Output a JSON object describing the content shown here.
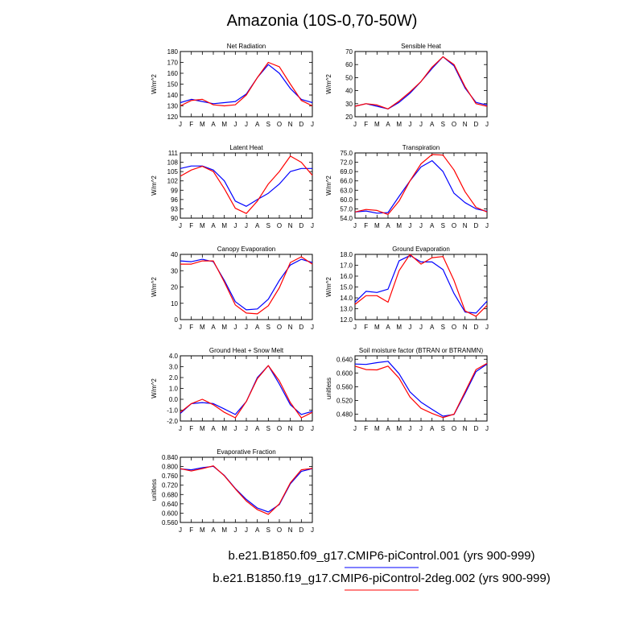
{
  "figure": {
    "title": "Amazonia (10S-0,70-50W)",
    "months": [
      "J",
      "F",
      "M",
      "A",
      "M",
      "J",
      "J",
      "A",
      "S",
      "O",
      "N",
      "D",
      "J"
    ],
    "colors": {
      "case1": "#0000ff",
      "case2": "#ff0000"
    },
    "legend": [
      {
        "label": "b.e21.B1850.f09_g17.CMIP6-piControl.001 (yrs 900-999)",
        "color": "#0000ff"
      },
      {
        "label": "b.e21.B1850.f19_g17.CMIP6-piControl-2deg.002 (yrs 900-999)",
        "color": "#ff0000"
      }
    ]
  },
  "chart_data": [
    {
      "type": "line",
      "title": "Net Radiation",
      "ylabel": "W/m^2",
      "ylim": [
        120,
        180
      ],
      "yticks": [
        "120",
        "130",
        "140",
        "150",
        "160",
        "170",
        "180"
      ],
      "x": [
        "J",
        "F",
        "M",
        "A",
        "M",
        "J",
        "J",
        "A",
        "S",
        "O",
        "N",
        "D",
        "J"
      ],
      "series": [
        {
          "name": "b.e21.B1850.f09_g17.CMIP6-piControl.001",
          "values": [
            133,
            136,
            134,
            132,
            133,
            134,
            141,
            156,
            168,
            160,
            146,
            136,
            133
          ]
        },
        {
          "name": "b.e21.B1850.f19_g17.CMIP6-piControl-2deg.002",
          "values": [
            130,
            135,
            136,
            131,
            130,
            131,
            140,
            156,
            170,
            166,
            150,
            135,
            130
          ]
        }
      ]
    },
    {
      "type": "line",
      "title": "Sensible Heat",
      "ylabel": "W/m^2",
      "ylim": [
        20,
        70
      ],
      "yticks": [
        "20",
        "30",
        "40",
        "50",
        "60",
        "70"
      ],
      "x": [
        "J",
        "F",
        "M",
        "A",
        "M",
        "J",
        "J",
        "A",
        "S",
        "O",
        "N",
        "D",
        "J"
      ],
      "series": [
        {
          "name": "b.e21.B1850.f09_g17.CMIP6-piControl.001",
          "values": [
            28,
            30,
            28,
            26,
            31,
            38,
            47,
            57,
            66,
            59,
            42,
            31,
            29
          ]
        },
        {
          "name": "b.e21.B1850.f19_g17.CMIP6-piControl-2deg.002",
          "values": [
            28,
            30,
            29,
            26,
            32,
            39,
            47,
            58,
            66,
            60,
            43,
            30,
            28
          ]
        }
      ]
    },
    {
      "type": "line",
      "title": "Latent Heat",
      "ylabel": "W/m^2",
      "ylim": [
        90,
        111
      ],
      "yticks": [
        "90",
        "93",
        "96",
        "99",
        "102",
        "105",
        "108",
        "111"
      ],
      "x": [
        "J",
        "F",
        "M",
        "A",
        "M",
        "J",
        "J",
        "A",
        "S",
        "O",
        "N",
        "D",
        "J"
      ],
      "series": [
        {
          "name": "b.e21.B1850.f09_g17.CMIP6-piControl.001",
          "values": [
            106,
            106.8,
            106.8,
            105.5,
            102,
            95.5,
            93.8,
            96,
            98,
            101,
            105,
            106,
            106
          ]
        },
        {
          "name": "b.e21.B1850.f19_g17.CMIP6-piControl-2deg.002",
          "values": [
            103.5,
            105.5,
            106.7,
            105,
            99.5,
            93.2,
            91.5,
            95.5,
            101,
            105,
            110,
            108,
            103.8
          ]
        }
      ]
    },
    {
      "type": "line",
      "title": "Transpiration",
      "ylabel": "W/m^2",
      "ylim": [
        54,
        75
      ],
      "yticks": [
        "54.0",
        "57.0",
        "60.0",
        "63.0",
        "66.0",
        "69.0",
        "72.0",
        "75.0"
      ],
      "x": [
        "J",
        "F",
        "M",
        "A",
        "M",
        "J",
        "J",
        "A",
        "S",
        "O",
        "N",
        "D",
        "J"
      ],
      "series": [
        {
          "name": "b.e21.B1850.f09_g17.CMIP6-piControl.001",
          "values": [
            56,
            56.3,
            55.6,
            55.8,
            61,
            66,
            70.5,
            72.5,
            69,
            62,
            59,
            57,
            56.2
          ]
        },
        {
          "name": "b.e21.B1850.f19_g17.CMIP6-piControl-2deg.002",
          "values": [
            56,
            56.8,
            56.5,
            55.2,
            59.5,
            66,
            71.5,
            74.5,
            74.3,
            69.5,
            62.5,
            57.5,
            56
          ]
        }
      ]
    },
    {
      "type": "line",
      "title": "Canopy Evaporation",
      "ylabel": "W/m^2",
      "ylim": [
        0,
        40
      ],
      "yticks": [
        "0",
        "10",
        "20",
        "30",
        "40"
      ],
      "x": [
        "J",
        "F",
        "M",
        "A",
        "M",
        "J",
        "J",
        "A",
        "S",
        "O",
        "N",
        "D",
        "J"
      ],
      "series": [
        {
          "name": "b.e21.B1850.f09_g17.CMIP6-piControl.001",
          "values": [
            36,
            35.5,
            37,
            35.5,
            24,
            11,
            6,
            6.5,
            12.5,
            24,
            33.5,
            37,
            35
          ]
        },
        {
          "name": "b.e21.B1850.f19_g17.CMIP6-piControl-2deg.002",
          "values": [
            34,
            34,
            36,
            36,
            23,
            9,
            4,
            3.5,
            8.5,
            19.5,
            35,
            38.5,
            34
          ]
        }
      ]
    },
    {
      "type": "line",
      "title": "Ground Evaporation",
      "ylabel": "W/m^2",
      "ylim": [
        12,
        18
      ],
      "yticks": [
        "12.0",
        "13.0",
        "14.0",
        "15.0",
        "16.0",
        "17.0",
        "18.0"
      ],
      "x": [
        "J",
        "F",
        "M",
        "A",
        "M",
        "J",
        "J",
        "A",
        "S",
        "O",
        "N",
        "D",
        "J"
      ],
      "series": [
        {
          "name": "b.e21.B1850.f09_g17.CMIP6-piControl.001",
          "values": [
            13.6,
            14.6,
            14.5,
            14.8,
            17.4,
            17.9,
            17.3,
            17.3,
            16.6,
            14.4,
            12.7,
            12.6,
            13.7
          ]
        },
        {
          "name": "b.e21.B1850.f19_g17.CMIP6-piControl-2deg.002",
          "values": [
            13.4,
            14.2,
            14.2,
            13.6,
            16.5,
            18,
            17.1,
            17.7,
            17.8,
            15.6,
            12.8,
            12.3,
            13.3
          ]
        }
      ]
    },
    {
      "type": "line",
      "title": "Ground Heat + Snow Melt",
      "ylabel": "W/m^2",
      "ylim": [
        -2,
        4
      ],
      "yticks": [
        "-2.0",
        "-1.0",
        "0.0",
        "1.0",
        "2.0",
        "3.0",
        "4.0"
      ],
      "x": [
        "J",
        "F",
        "M",
        "A",
        "M",
        "J",
        "J",
        "A",
        "S",
        "O",
        "N",
        "D",
        "J"
      ],
      "series": [
        {
          "name": "b.e21.B1850.f09_g17.CMIP6-piControl.001",
          "values": [
            -1.3,
            -0.4,
            -0.3,
            -0.4,
            -0.9,
            -1.4,
            -0.2,
            2.0,
            3.1,
            1.4,
            -0.5,
            -1.4,
            -1.1
          ]
        },
        {
          "name": "b.e21.B1850.f19_g17.CMIP6-piControl-2deg.002",
          "values": [
            -1.2,
            -0.4,
            0.0,
            -0.5,
            -1.2,
            -1.7,
            -0.2,
            1.9,
            3.1,
            1.7,
            -0.3,
            -1.7,
            -1.2
          ]
        }
      ]
    },
    {
      "type": "line",
      "title": "Soil moisture factor (BTRAN or BTRANMN)",
      "ylabel": "unitless",
      "ylim": [
        0.46,
        0.65
      ],
      "yticks": [
        "0.480",
        "0.520",
        "0.560",
        "0.600",
        "0.640"
      ],
      "x": [
        "J",
        "F",
        "M",
        "A",
        "M",
        "J",
        "J",
        "A",
        "S",
        "O",
        "N",
        "D",
        "J"
      ],
      "series": [
        {
          "name": "b.e21.B1850.f09_g17.CMIP6-piControl.001",
          "values": [
            0.626,
            0.625,
            0.63,
            0.634,
            0.598,
            0.545,
            0.515,
            0.494,
            0.474,
            0.479,
            0.54,
            0.604,
            0.626
          ]
        },
        {
          "name": "b.e21.B1850.f19_g17.CMIP6-piControl-2deg.002",
          "values": [
            0.62,
            0.61,
            0.609,
            0.62,
            0.585,
            0.53,
            0.497,
            0.482,
            0.47,
            0.48,
            0.545,
            0.61,
            0.628
          ]
        }
      ]
    },
    {
      "type": "line",
      "title": "Evaporative Fraction",
      "ylabel": "unitless",
      "ylim": [
        0.56,
        0.84
      ],
      "yticks": [
        "0.560",
        "0.600",
        "0.640",
        "0.680",
        "0.720",
        "0.760",
        "0.800",
        "0.840"
      ],
      "x": [
        "J",
        "F",
        "M",
        "A",
        "M",
        "J",
        "J",
        "A",
        "S",
        "O",
        "N",
        "D",
        "J"
      ],
      "series": [
        {
          "name": "b.e21.B1850.f09_g17.CMIP6-piControl.001",
          "values": [
            0.79,
            0.786,
            0.795,
            0.801,
            0.762,
            0.706,
            0.659,
            0.622,
            0.605,
            0.637,
            0.726,
            0.779,
            0.791
          ]
        },
        {
          "name": "b.e21.B1850.f19_g17.CMIP6-piControl-2deg.002",
          "values": [
            0.791,
            0.781,
            0.791,
            0.803,
            0.76,
            0.704,
            0.652,
            0.615,
            0.595,
            0.64,
            0.73,
            0.786,
            0.792
          ]
        }
      ]
    }
  ]
}
